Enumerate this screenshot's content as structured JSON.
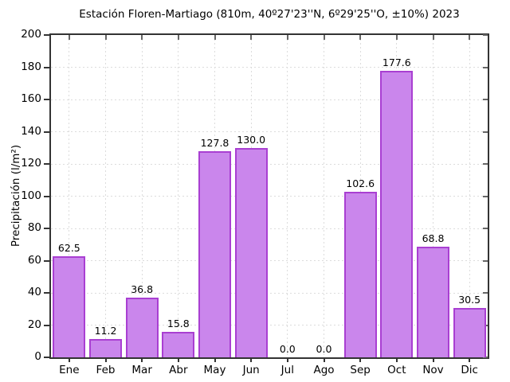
{
  "title": "Estación Floren-Martiago (810m, 40º27'23''N, 6º29'25''O, ±10%) 2023",
  "chart_data": {
    "type": "bar",
    "title": "Estación Floren-Martiago (810m, 40º27'23''N, 6º29'25''O, ±10%) 2023",
    "xlabel": "",
    "ylabel": "Precipitación (l/m²)",
    "categories": [
      "Ene",
      "Feb",
      "Mar",
      "Abr",
      "May",
      "Jun",
      "Jul",
      "Ago",
      "Sep",
      "Oct",
      "Nov",
      "Dic"
    ],
    "values": [
      62.5,
      11.2,
      36.8,
      15.8,
      127.8,
      130.0,
      0.0,
      0.0,
      102.6,
      177.6,
      68.8,
      30.5
    ],
    "value_labels": [
      "62.5",
      "11.2",
      "36.8",
      "15.8",
      "127.8",
      "130.0",
      "0.0",
      "0.0",
      "102.6",
      "177.6",
      "68.8",
      "30.5"
    ],
    "ylim": [
      0,
      200
    ],
    "ytick_step": 20,
    "grid": "dotted-both",
    "legend": "none",
    "colors": {
      "bar_fill": "#ca86ec",
      "bar_edge": "#a93fd2",
      "grid": "#dcdcdc",
      "axis": "#333333",
      "inner_tick": "#666666",
      "text": "#000000",
      "background": "#ffffff"
    }
  }
}
